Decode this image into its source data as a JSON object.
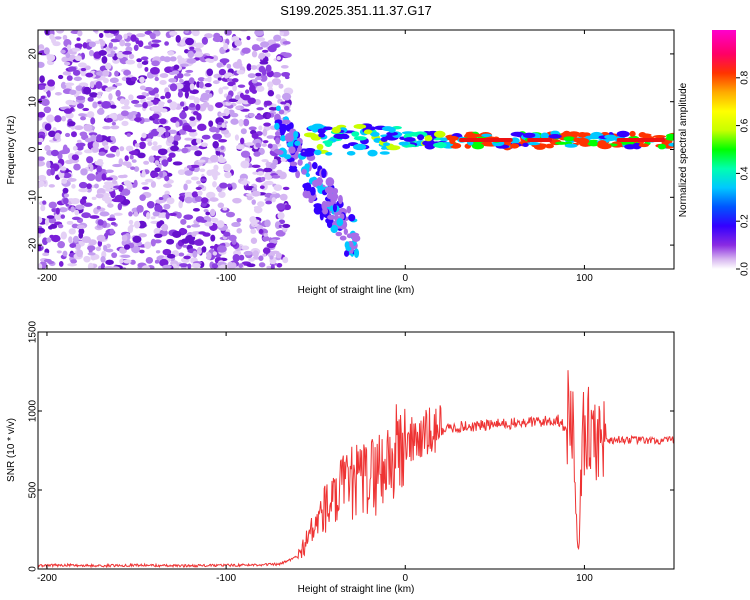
{
  "title": "S199.2025.351.11.37.G17",
  "chart_data": [
    {
      "type": "heatmap",
      "xlabel": "Height of straight line (km)",
      "ylabel": "Frequency (Hz)",
      "xlim": [
        -205,
        150
      ],
      "ylim": [
        -25,
        25
      ],
      "xticks": [
        -200,
        -100,
        0,
        100
      ],
      "yticks": [
        -20,
        -10,
        0,
        10,
        20
      ],
      "colorbar": {
        "label": "Normalized spectral amplitude",
        "range": [
          0,
          1
        ],
        "ticks": [
          "0.0",
          "0.2",
          "0.4",
          "0.6",
          "0.8"
        ],
        "tick_values": [
          0.0,
          0.2,
          0.4,
          0.6,
          0.8
        ],
        "colors": [
          "#ffffff",
          "#d8b8f0",
          "#8a2be2",
          "#3300ff",
          "#0055ff",
          "#00c8ff",
          "#00ffb0",
          "#00ff00",
          "#c8ff00",
          "#ffff00",
          "#ffaa00",
          "#ff3300",
          "#ff0066",
          "#ff00cc"
        ]
      },
      "band_center_hz": 2,
      "noise_region_km": [
        -205,
        -75
      ]
    },
    {
      "type": "line",
      "xlabel": "Height of straight line (km)",
      "ylabel": "SNR (10 * v/v)",
      "xlim": [
        -205,
        150
      ],
      "ylim": [
        0,
        1500
      ],
      "xticks": [
        -200,
        -100,
        0,
        100
      ],
      "yticks": [
        0,
        500,
        1000,
        1500
      ],
      "color": "#ee3333",
      "series": [
        {
          "name": "SNR",
          "x": [
            -205,
            -190,
            -170,
            -150,
            -130,
            -110,
            -90,
            -70,
            -60,
            -55,
            -50,
            -45,
            -40,
            -35,
            -30,
            -25,
            -20,
            -15,
            -10,
            -5,
            0,
            5,
            10,
            15,
            20,
            25,
            30,
            40,
            50,
            60,
            70,
            80,
            85,
            90,
            93,
            95,
            97,
            99,
            101,
            103,
            105,
            107,
            109,
            111,
            113,
            115,
            120,
            130,
            140,
            150
          ],
          "values": [
            20,
            25,
            20,
            25,
            20,
            22,
            25,
            30,
            80,
            180,
            280,
            380,
            420,
            500,
            540,
            560,
            580,
            620,
            680,
            730,
            790,
            820,
            840,
            860,
            880,
            890,
            900,
            905,
            915,
            920,
            930,
            935,
            950,
            880,
            1100,
            400,
            100,
            900,
            880,
            840,
            820,
            850,
            810,
            830,
            820,
            815,
            820,
            815,
            810,
            815
          ]
        }
      ]
    }
  ]
}
